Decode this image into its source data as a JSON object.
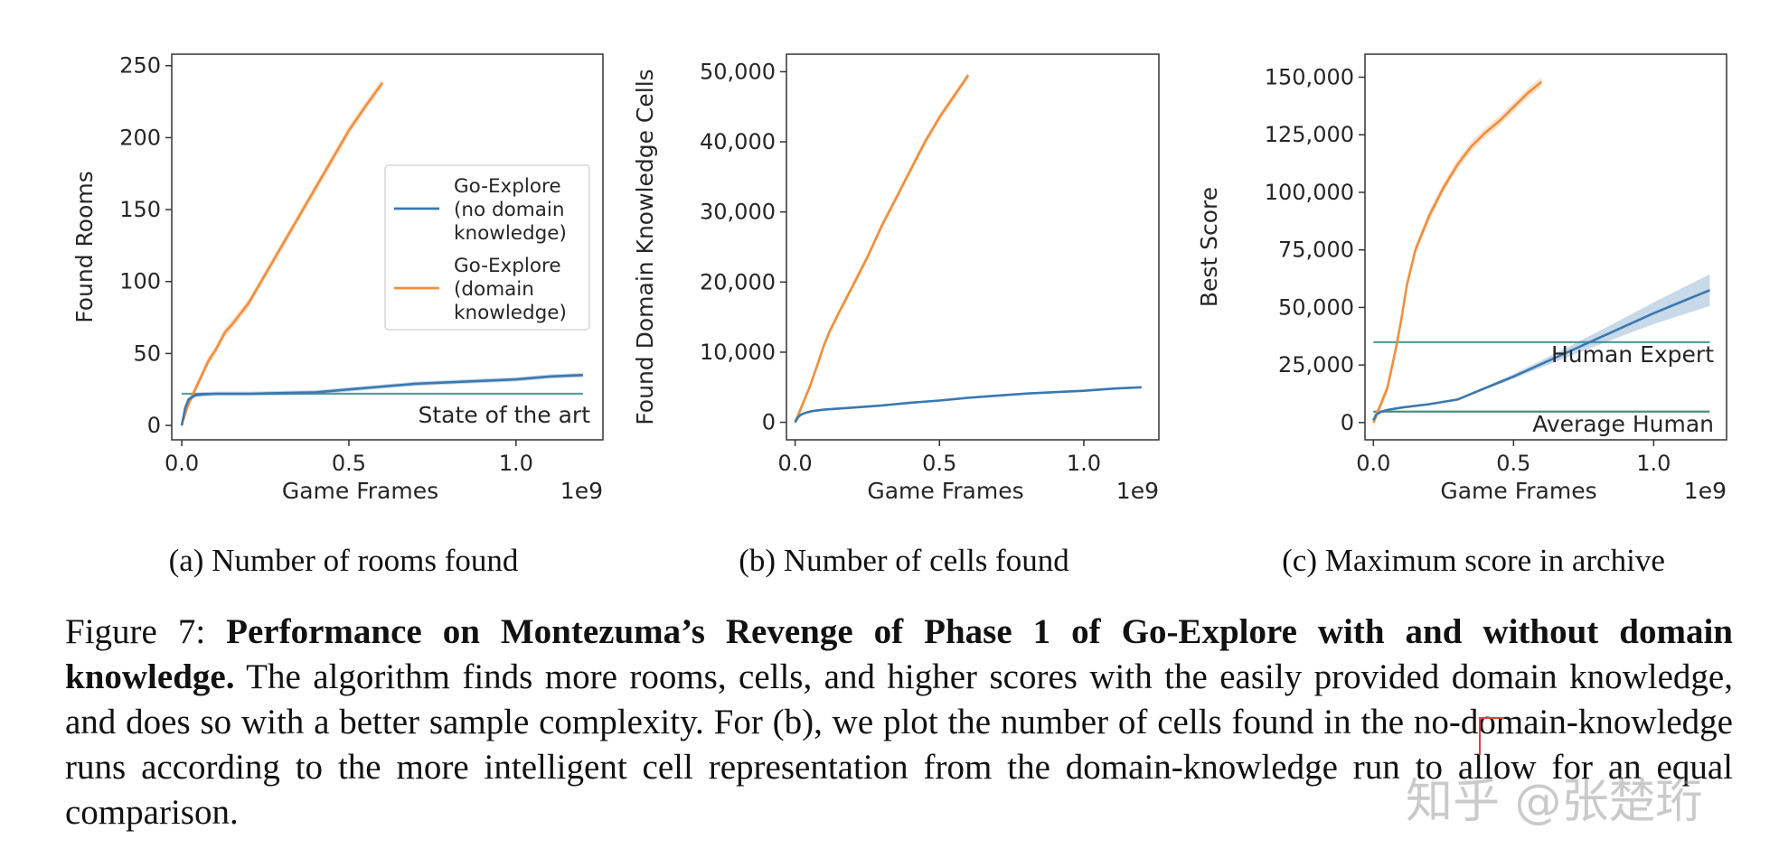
{
  "chart_data": [
    {
      "type": "line",
      "subcaption": "(a) Number of rooms found",
      "xlabel": "Game Frames",
      "ylabel": "Found Rooms",
      "x_scale_label": "1e9",
      "xlim": [
        -0.03,
        1.26
      ],
      "ylim": [
        -10,
        258
      ],
      "xticks": [
        0.0,
        0.5,
        1.0
      ],
      "xtick_labels": [
        "0.0",
        "0.5",
        "1.0"
      ],
      "yticks": [
        0,
        50,
        100,
        150,
        200,
        250
      ],
      "ytick_labels": [
        "0",
        "50",
        "100",
        "150",
        "200",
        "250"
      ],
      "grid": false,
      "legend_position": "center-right",
      "legend": [
        {
          "lines": [
            "Go-Explore",
            "(no domain",
            "knowledge)"
          ],
          "color": "#3a78b0"
        },
        {
          "lines": [
            "Go-Explore",
            "(domain",
            "knowledge)"
          ],
          "color": "#ef8f3d"
        }
      ],
      "hlines": [
        {
          "y": 22,
          "label": "State of the art",
          "color": "#5a9f9a"
        }
      ],
      "series": [
        {
          "name": "Go-Explore (domain knowledge)",
          "color": "#ef8f3d",
          "band": 3,
          "x": [
            0.0,
            0.02,
            0.05,
            0.08,
            0.1,
            0.13,
            0.15,
            0.2,
            0.25,
            0.3,
            0.35,
            0.4,
            0.45,
            0.5,
            0.55,
            0.6
          ],
          "y": [
            1,
            15,
            30,
            45,
            52,
            65,
            70,
            85,
            105,
            125,
            145,
            165,
            185,
            205,
            222,
            238
          ]
        },
        {
          "name": "Go-Explore (no domain knowledge)",
          "color": "#3a78b0",
          "band": 1.5,
          "x": [
            0.0,
            0.01,
            0.02,
            0.04,
            0.06,
            0.1,
            0.2,
            0.3,
            0.4,
            0.5,
            0.6,
            0.7,
            0.8,
            0.9,
            1.0,
            1.1,
            1.2
          ],
          "y": [
            0,
            12,
            18,
            21,
            21.5,
            22,
            22,
            22.5,
            23,
            25,
            27,
            29,
            30,
            31,
            32,
            34,
            35
          ]
        }
      ]
    },
    {
      "type": "line",
      "subcaption": "(b) Number of cells found",
      "xlabel": "Game Frames",
      "ylabel": "Found Domain Knowledge Cells",
      "x_scale_label": "1e9",
      "xlim": [
        -0.03,
        1.26
      ],
      "ylim": [
        -2500,
        52500
      ],
      "xticks": [
        0.0,
        0.5,
        1.0
      ],
      "xtick_labels": [
        "0.0",
        "0.5",
        "1.0"
      ],
      "yticks": [
        0,
        10000,
        20000,
        30000,
        40000,
        50000
      ],
      "ytick_labels": [
        "0",
        "10,000",
        "20,000",
        "30,000",
        "40,000",
        "50,000"
      ],
      "grid": false,
      "series": [
        {
          "name": "Go-Explore (domain knowledge)",
          "color": "#ef8f3d",
          "band": 500,
          "x": [
            0.0,
            0.02,
            0.05,
            0.08,
            0.1,
            0.12,
            0.15,
            0.2,
            0.25,
            0.3,
            0.35,
            0.4,
            0.45,
            0.5,
            0.55,
            0.6
          ],
          "y": [
            0,
            2000,
            5000,
            8500,
            11000,
            13000,
            15500,
            19500,
            23500,
            28000,
            32000,
            36000,
            40000,
            43500,
            46500,
            49500
          ]
        },
        {
          "name": "Go-Explore (no domain knowledge)",
          "color": "#3a78b0",
          "band": 150,
          "x": [
            0.0,
            0.01,
            0.02,
            0.04,
            0.06,
            0.1,
            0.2,
            0.3,
            0.4,
            0.5,
            0.6,
            0.7,
            0.8,
            0.9,
            1.0,
            1.1,
            1.2
          ],
          "y": [
            0,
            700,
            1100,
            1400,
            1600,
            1800,
            2100,
            2400,
            2800,
            3100,
            3500,
            3800,
            4100,
            4300,
            4500,
            4800,
            5000
          ]
        }
      ]
    },
    {
      "type": "line",
      "subcaption": "(c) Maximum score in archive",
      "xlabel": "Game Frames",
      "ylabel": "Best Score",
      "x_scale_label": "1e9",
      "xlim": [
        -0.03,
        1.26
      ],
      "ylim": [
        -7500,
        160000
      ],
      "xticks": [
        0.0,
        0.5,
        1.0
      ],
      "xtick_labels": [
        "0.0",
        "0.5",
        "1.0"
      ],
      "yticks": [
        0,
        25000,
        50000,
        75000,
        100000,
        125000,
        150000
      ],
      "ytick_labels": [
        "0",
        "25,000",
        "50,000",
        "75,000",
        "100,000",
        "125,000",
        "150,000"
      ],
      "grid": false,
      "hlines": [
        {
          "y": 34900,
          "label": "Human Expert",
          "color": "#5a9f9a"
        },
        {
          "y": 4750,
          "label": "Average Human",
          "color": "#4a8f78"
        }
      ],
      "series": [
        {
          "name": "Go-Explore (domain knowledge)",
          "color": "#ef8f3d",
          "band": 2000,
          "x": [
            0.0,
            0.02,
            0.05,
            0.08,
            0.1,
            0.12,
            0.15,
            0.2,
            0.25,
            0.3,
            0.35,
            0.4,
            0.45,
            0.5,
            0.55,
            0.6
          ],
          "y": [
            0,
            6000,
            15000,
            32000,
            45000,
            60000,
            75000,
            90000,
            102000,
            112000,
            120000,
            126000,
            131000,
            137000,
            143000,
            148000
          ]
        },
        {
          "name": "Go-Explore (no domain knowledge)",
          "color": "#3a78b0",
          "band_pct": 0.12,
          "x": [
            0.0,
            0.01,
            0.03,
            0.05,
            0.1,
            0.2,
            0.3,
            0.4,
            0.5,
            0.6,
            0.7,
            0.8,
            0.9,
            1.0,
            1.1,
            1.2
          ],
          "y": [
            1000,
            3500,
            4800,
            5500,
            6500,
            8000,
            10000,
            15000,
            20000,
            25500,
            31000,
            36500,
            42000,
            47500,
            52500,
            57500
          ]
        }
      ]
    }
  ],
  "caption": {
    "prefix": "Figure 7: ",
    "bold": "Performance on Montezuma’s Revenge of Phase 1 of Go-Explore with and without domain knowledge.",
    "body": " The algorithm finds more rooms, cells, and higher scores with the easily provided domain knowledge, and does so with a better sample complexity. For (b), we plot the number of cells found in the no-domain-knowledge runs according to the more intelligent cell representation from the domain-knowledge run to allow for an equal comparison."
  },
  "watermark": "知乎 @张楚珩"
}
